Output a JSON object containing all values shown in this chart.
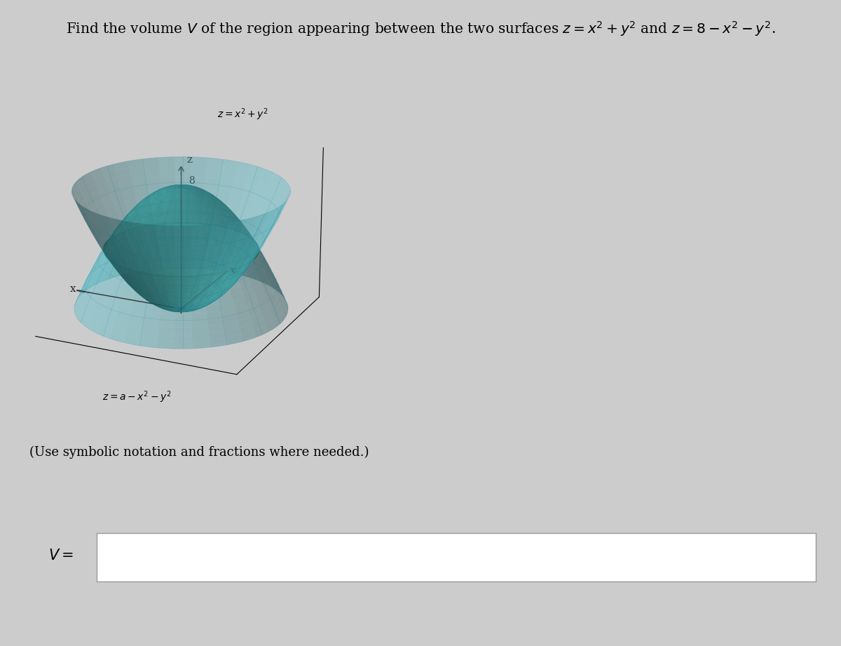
{
  "title_plain": "Find the volume ",
  "title_V": "V",
  "title_rest": " of the region appearing between the two surfaces z = x² + y² and z = 8 − x² − y².",
  "title_fontsize": 14.5,
  "background_color": "#cccccc",
  "plot_bg_color": "#cccccc",
  "label_upper": "z = x²+ y²",
  "label_lower": "z = a − x²− y²",
  "label_8": "8",
  "label_x": "x",
  "label_y": "y",
  "label_z": "z",
  "instruction_text": "(Use symbolic notation and fractions where needed.)",
  "v_label": "V =",
  "cyan_color": "#55c0cc",
  "green_color": "#2eaa70",
  "cyan_alpha": 0.42,
  "green_alpha": 0.6,
  "figsize": [
    12.0,
    9.21
  ],
  "dpi": 100
}
